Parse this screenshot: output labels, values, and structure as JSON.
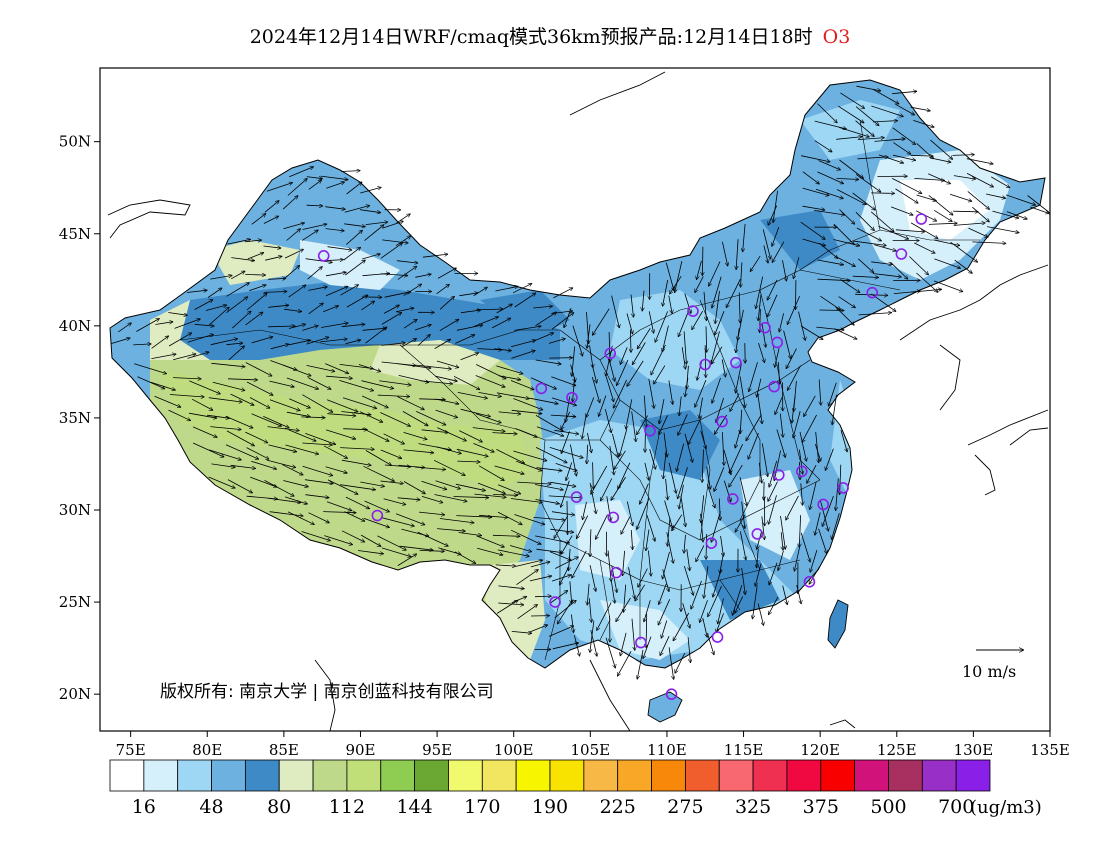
{
  "title": {
    "text": "2024年12月14日WRF/cmaq模式36km预报产品:12月14日18时",
    "species": "O3",
    "species_color": "#e02020"
  },
  "map": {
    "lon_range": [
      73,
      135
    ],
    "lat_range": [
      18,
      54
    ],
    "lon_ticks": [
      "75E",
      "80E",
      "85E",
      "90E",
      "95E",
      "100E",
      "105E",
      "110E",
      "115E",
      "120E",
      "125E",
      "130E",
      "135E"
    ],
    "lat_ticks": [
      "20N",
      "25N",
      "30N",
      "35N",
      "40N",
      "45N",
      "50N"
    ],
    "copyright": "版权所有: 南京大学 | 南京创蓝科技有限公司",
    "wind_reference": "10 m/s",
    "stations": [
      [
        87.6,
        43.8
      ],
      [
        91.1,
        29.7
      ],
      [
        101.8,
        36.6
      ],
      [
        103.8,
        36.1
      ],
      [
        106.3,
        38.5
      ],
      [
        111.7,
        40.8
      ],
      [
        116.4,
        39.9
      ],
      [
        117.2,
        39.1
      ],
      [
        114.5,
        38.0
      ],
      [
        112.5,
        37.9
      ],
      [
        117.0,
        36.7
      ],
      [
        113.6,
        34.8
      ],
      [
        108.9,
        34.3
      ],
      [
        104.1,
        30.7
      ],
      [
        106.5,
        29.6
      ],
      [
        106.7,
        26.6
      ],
      [
        102.7,
        25.0
      ],
      [
        108.3,
        22.8
      ],
      [
        110.3,
        20.0
      ],
      [
        113.3,
        23.1
      ],
      [
        112.9,
        28.2
      ],
      [
        114.3,
        30.6
      ],
      [
        115.9,
        28.7
      ],
      [
        117.3,
        31.9
      ],
      [
        118.8,
        32.1
      ],
      [
        120.2,
        30.3
      ],
      [
        121.5,
        31.2
      ],
      [
        119.3,
        26.1
      ],
      [
        123.4,
        41.8
      ],
      [
        125.3,
        43.9
      ],
      [
        126.6,
        45.8
      ]
    ]
  },
  "colorbar": {
    "colors": [
      "#ffffff",
      "#d5effb",
      "#9ed7f4",
      "#6cb1e0",
      "#3e8ac6",
      "#dfebc0",
      "#bfd98a",
      "#c0df78",
      "#8fcc52",
      "#6aa833",
      "#f0fa6c",
      "#f2e660",
      "#f8f500",
      "#f8e200",
      "#f8b846",
      "#f8a826",
      "#f8880a",
      "#f05e2e",
      "#f86870",
      "#f03050",
      "#f00840",
      "#f80000",
      "#d0127a",
      "#a83060",
      "#9830c8",
      "#8a20e8"
    ],
    "labels": [
      "16",
      "48",
      "80",
      "112",
      "144",
      "170",
      "190",
      "225",
      "275",
      "325",
      "375",
      "500",
      "700"
    ],
    "unit": "(ug/m3)"
  }
}
